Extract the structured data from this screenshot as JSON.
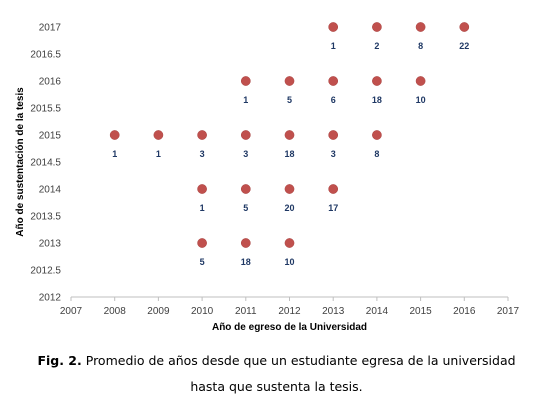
{
  "caption": {
    "prefix": "Fig. 2.",
    "line1": "Promedio de años desde que un estudiante egresa de la universidad",
    "line2": "hasta que sustenta la tesis."
  },
  "chart_data": {
    "type": "scatter",
    "xlabel": "Año de egreso de la Universidad",
    "ylabel": "Año de sustentación de la tesis",
    "xlim": [
      2007,
      2017
    ],
    "ylim": [
      2012,
      2017
    ],
    "xticks": [
      "2007",
      "2008",
      "2009",
      "2010",
      "2011",
      "2012",
      "2013",
      "2014",
      "2015",
      "2016",
      "2017"
    ],
    "yticks": [
      "2012",
      "2012.5",
      "2013",
      "2013.5",
      "2014",
      "2014.5",
      "2015",
      "2015.5",
      "2016",
      "2016.5",
      "2017"
    ],
    "grid": false,
    "marker_color": "#c0504d",
    "label_color": "#1f3864",
    "points": [
      {
        "x": 2013,
        "y": 2017,
        "label": "1"
      },
      {
        "x": 2014,
        "y": 2017,
        "label": "2"
      },
      {
        "x": 2015,
        "y": 2017,
        "label": "8"
      },
      {
        "x": 2016,
        "y": 2017,
        "label": "22"
      },
      {
        "x": 2011,
        "y": 2016,
        "label": "1"
      },
      {
        "x": 2012,
        "y": 2016,
        "label": "5"
      },
      {
        "x": 2013,
        "y": 2016,
        "label": "6"
      },
      {
        "x": 2014,
        "y": 2016,
        "label": "18"
      },
      {
        "x": 2015,
        "y": 2016,
        "label": "10"
      },
      {
        "x": 2008,
        "y": 2015,
        "label": "1"
      },
      {
        "x": 2009,
        "y": 2015,
        "label": "1"
      },
      {
        "x": 2010,
        "y": 2015,
        "label": "3"
      },
      {
        "x": 2011,
        "y": 2015,
        "label": "3"
      },
      {
        "x": 2012,
        "y": 2015,
        "label": "18"
      },
      {
        "x": 2013,
        "y": 2015,
        "label": "3"
      },
      {
        "x": 2014,
        "y": 2015,
        "label": "8"
      },
      {
        "x": 2010,
        "y": 2014,
        "label": "1"
      },
      {
        "x": 2011,
        "y": 2014,
        "label": "5"
      },
      {
        "x": 2012,
        "y": 2014,
        "label": "20"
      },
      {
        "x": 2013,
        "y": 2014,
        "label": "17"
      },
      {
        "x": 2010,
        "y": 2013,
        "label": "5"
      },
      {
        "x": 2011,
        "y": 2013,
        "label": "18"
      },
      {
        "x": 2012,
        "y": 2013,
        "label": "10"
      }
    ]
  }
}
